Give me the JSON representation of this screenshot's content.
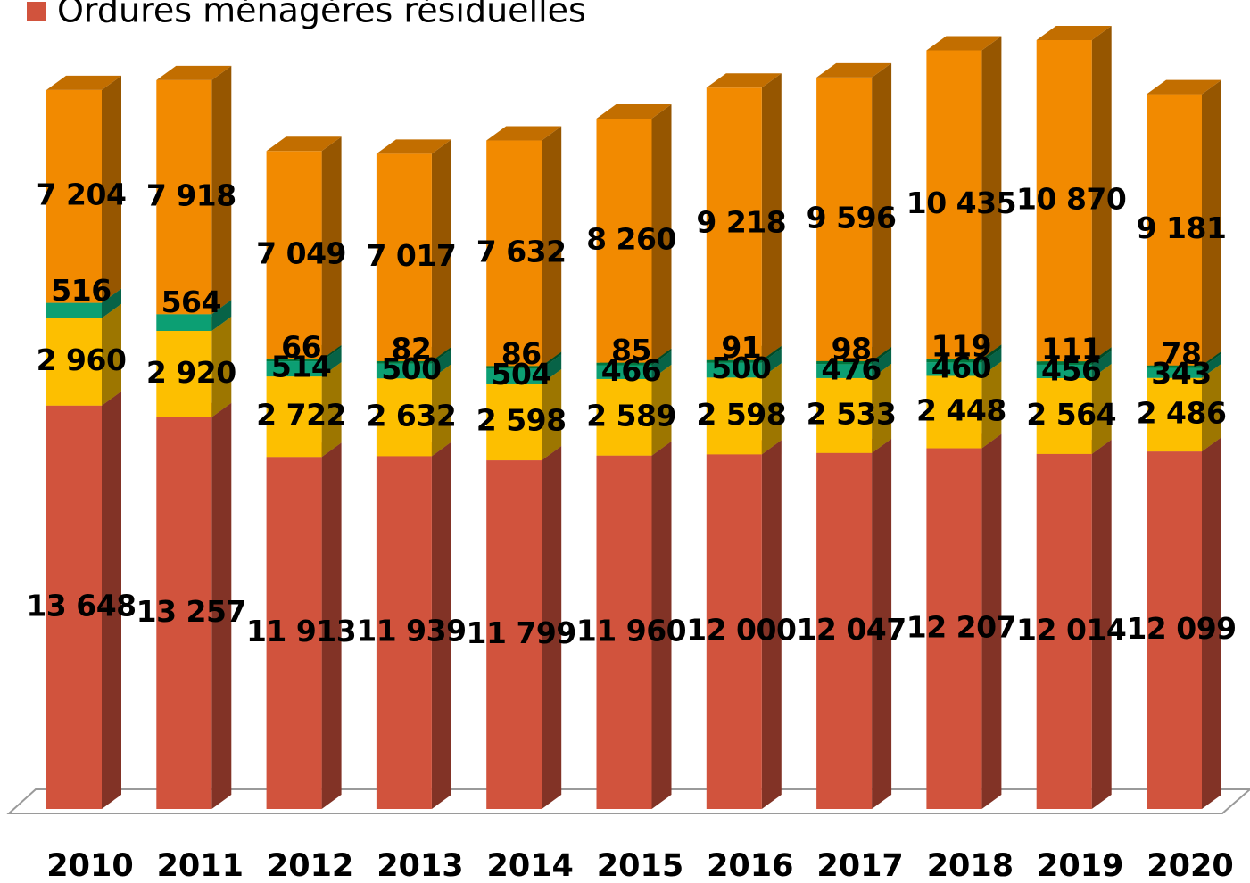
{
  "chart_data": {
    "type": "bar",
    "stacked": true,
    "categories": [
      "2010",
      "2011",
      "2012",
      "2013",
      "2014",
      "2015",
      "2016",
      "2017",
      "2018",
      "2019",
      "2020"
    ],
    "series": [
      {
        "name": "Ordures ménagères résiduelles",
        "color": "#d1533d",
        "values": [
          13648,
          13257,
          11913,
          11939,
          11799,
          11960,
          12000,
          12047,
          12207,
          12014,
          12099
        ],
        "value_labels": [
          "13 648",
          "13 257",
          "11 913",
          "11 939",
          "11 799",
          "11 960",
          "12 000",
          "12 047",
          "12 207",
          "12 014",
          "12 099"
        ]
      },
      {
        "color": "#fdbf00",
        "values": [
          2960,
          2920,
          2722,
          2632,
          2598,
          2589,
          2598,
          2533,
          2448,
          2564,
          2486
        ],
        "value_labels": [
          "2 960",
          "2 920",
          "2 722",
          "2 632",
          "2 598",
          "2 589",
          "2 598",
          "2 533",
          "2 448",
          "2 564",
          "2 486"
        ]
      },
      {
        "color": "#0c9f73",
        "values": [
          516,
          564,
          514,
          500,
          504,
          466,
          500,
          476,
          460,
          456,
          343
        ]
      },
      {
        "color": "#00773f",
        "values": [
          null,
          null,
          66,
          82,
          86,
          85,
          91,
          98,
          119,
          111,
          78
        ]
      },
      {
        "color": "#f28a00",
        "values": [
          7204,
          7918,
          7049,
          7017,
          7632,
          8260,
          9218,
          9596,
          10435,
          10870,
          9181
        ],
        "value_labels": [
          "7 204",
          "7 918",
          "7 049",
          "7 017",
          "7 632",
          "8 260",
          "9 218",
          "9 596",
          "10 435",
          "10 870",
          "9 181"
        ]
      }
    ],
    "legend": "top-left"
  }
}
